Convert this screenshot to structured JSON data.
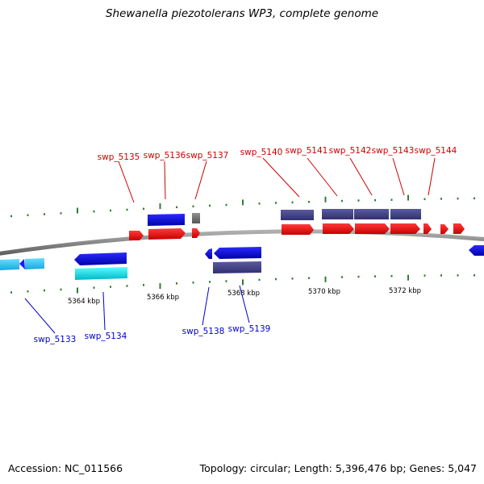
{
  "title": "Shewanella piezotolerans WP3, complete genome",
  "footer": {
    "accession": "Accession: NC_011566",
    "topology": "Topology: circular; Length: 5,396,476 bp; Genes: 5,047"
  },
  "colors": {
    "backbone": "#8a8a8a",
    "tick": "#2e7d32",
    "forward_cds": "#ff1a1a",
    "reverse_cds": "#1a1aff",
    "forward_label": "#cc0000",
    "reverse_label": "#0000cc",
    "cyan_feature": "#00e5ee",
    "light_blue_feature": "#33ccff",
    "slate_feature": "#4b4b8f",
    "grey_feature": "#707070"
  },
  "scale_labels": [
    "5364 kbp",
    "5366 kbp",
    "5368 kbp",
    "5370 kbp",
    "5372 kbp"
  ],
  "gene_labels_top": [
    "swp_5135",
    "swp_5136",
    "swp_5137",
    "swp_5140",
    "swp_5141",
    "swp_5142",
    "swp_5143",
    "swp_5144"
  ],
  "gene_labels_bottom": [
    "swp_5133",
    "swp_5134",
    "swp_5138",
    "swp_5139"
  ]
}
